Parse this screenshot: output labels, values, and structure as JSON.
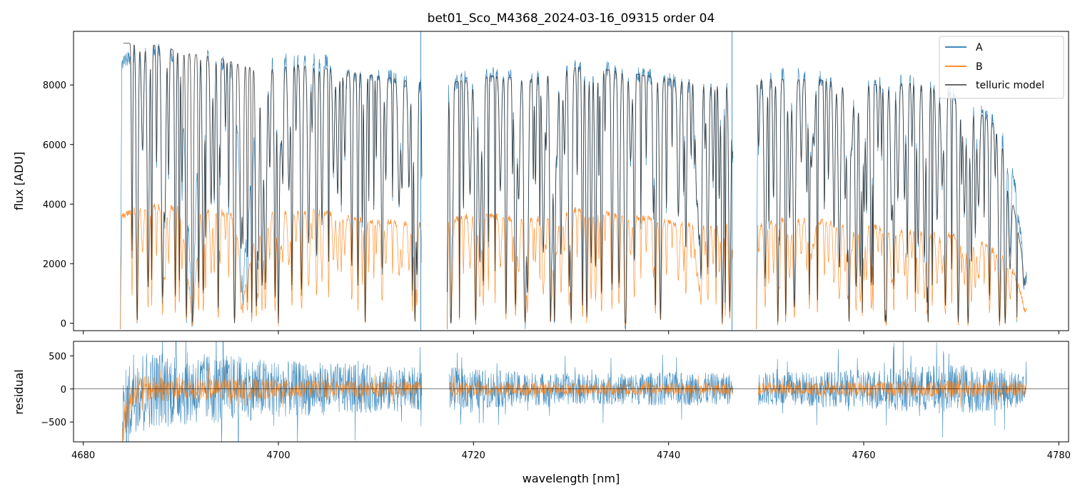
{
  "chart_data": [
    {
      "id": "main-panel",
      "type": "line",
      "title": "bet01_Sco_M4368_2024-03-16_09315  order 04",
      "xlabel": "",
      "ylabel": "flux [ADU]",
      "xlim": [
        4679,
        4781
      ],
      "ylim": [
        -250,
        9800
      ],
      "yticks": [
        0,
        2000,
        4000,
        6000,
        8000
      ],
      "ytick_labels": [
        "0",
        "2000",
        "4000",
        "6000",
        "8000"
      ],
      "xticks": [
        4680,
        4700,
        4720,
        4740,
        4760,
        4780
      ],
      "grid": false,
      "legend_position": "top-right",
      "colors": {
        "A": "#1f77b4",
        "B": "#ff7f0e",
        "telluric": "#333333"
      },
      "segments": [
        [
          4683.8,
          4714.7
        ],
        [
          4717.3,
          4746.6
        ],
        [
          4749.0,
          4776.7
        ]
      ],
      "series": [
        {
          "name": "A",
          "x": [
            4684.0,
            4686.0,
            4688.0,
            4690.0,
            4691.2,
            4692.0,
            4694.0,
            4695.5,
            4696.5,
            4698.0,
            4700.0,
            4702.0,
            4704.0,
            4706.0,
            4708.0,
            4710.0,
            4712.0,
            4714.0,
            4717.5,
            4720.0,
            4724.0,
            4728.0,
            4730.0,
            4732.0,
            4735.0,
            4738.0,
            4742.0,
            4745.5,
            4749.2,
            4752.0,
            4756.0,
            4760.0,
            4764.0,
            4768.0,
            4772.0,
            4775.0,
            4776.6
          ],
          "values": [
            8700,
            9300,
            9200,
            8900,
            200,
            9000,
            8800,
            8400,
            2000,
            8200,
            9000,
            8800,
            9000,
            8500,
            8200,
            8300,
            8300,
            8000,
            8000,
            8400,
            8300,
            8200,
            8700,
            8700,
            8400,
            8300,
            8000,
            8000,
            8000,
            8400,
            8200,
            8000,
            8200,
            7900,
            7300,
            6000,
            1500
          ]
        },
        {
          "name": "B",
          "x": [
            4684.0,
            4686.0,
            4688.0,
            4690.0,
            4691.2,
            4692.0,
            4694.0,
            4695.5,
            4696.5,
            4698.0,
            4700.0,
            4702.0,
            4704.0,
            4706.0,
            4708.0,
            4710.0,
            4712.0,
            4714.0,
            4717.5,
            4720.0,
            4724.0,
            4728.0,
            4730.0,
            4732.0,
            4735.0,
            4738.0,
            4742.0,
            4745.5,
            4749.2,
            4752.0,
            4756.0,
            4760.0,
            4764.0,
            4768.0,
            4772.0,
            4775.0,
            4776.6
          ],
          "values": [
            3600,
            3950,
            3900,
            3850,
            150,
            3800,
            3750,
            3600,
            1000,
            3500,
            3750,
            3700,
            3800,
            3600,
            3500,
            3400,
            3400,
            3300,
            3400,
            3700,
            3500,
            3500,
            3800,
            3800,
            3600,
            3500,
            3300,
            3300,
            3300,
            3500,
            3400,
            3300,
            3100,
            3000,
            2700,
            2100,
            500
          ]
        },
        {
          "name": "telluric model",
          "x": [
            4684.0,
            4686.0,
            4688.0,
            4690.0,
            4692.0,
            4694.0,
            4698.0,
            4702.0,
            4706.0,
            4710.0,
            4714.0,
            4718.0,
            4722.0,
            4726.0,
            4730.0,
            4734.0,
            4738.0,
            4742.0,
            4746.0,
            4750.0,
            4754.0,
            4758.0,
            4762.0,
            4766.0,
            4770.0,
            4774.0,
            4776.6
          ],
          "values": [
            9400,
            9400,
            9300,
            9100,
            9000,
            8900,
            8500,
            8700,
            8500,
            8300,
            8100,
            8100,
            8300,
            8200,
            8600,
            8500,
            8300,
            8100,
            8000,
            8200,
            8200,
            8100,
            8000,
            8100,
            7600,
            6500,
            1600
          ]
        }
      ]
    },
    {
      "id": "residual-panel",
      "type": "line",
      "title": "",
      "xlabel": "wavelength [nm]",
      "ylabel": "residual",
      "xlim": [
        4679,
        4781
      ],
      "ylim": [
        -800,
        720
      ],
      "yticks": [
        -500,
        0,
        500
      ],
      "ytick_labels": [
        "−500",
        "0",
        "500"
      ],
      "xticks": [
        4680,
        4700,
        4720,
        4740,
        4760,
        4780
      ],
      "xtick_labels": [
        "4680",
        "4700",
        "4720",
        "4740",
        "4760",
        "4780"
      ],
      "grid": false,
      "zero_line": true,
      "segments": [
        [
          4684.0,
          4714.7
        ],
        [
          4717.5,
          4746.6
        ],
        [
          4749.2,
          4776.7
        ]
      ],
      "series": [
        {
          "name": "A",
          "amplitude_x": [
            4684.0,
            4686.0,
            4690.0,
            4695.0,
            4700.0,
            4705.0,
            4710.0,
            4714.0,
            4718.0,
            4725.0,
            4732.0,
            4740.0,
            4746.0,
            4750.0,
            4758.0,
            4764.0,
            4770.0,
            4776.0
          ],
          "amplitude": [
            750,
            600,
            560,
            520,
            430,
            400,
            360,
            330,
            330,
            260,
            230,
            260,
            240,
            260,
            280,
            340,
            390,
            280
          ]
        },
        {
          "name": "B",
          "amplitude_x": [
            4684.0,
            4686.0,
            4690.0,
            4695.0,
            4700.0,
            4705.0,
            4710.0,
            4714.0,
            4718.0,
            4725.0,
            4732.0,
            4740.0,
            4746.0,
            4750.0,
            4758.0,
            4764.0,
            4770.0,
            4776.0
          ],
          "amplitude": [
            300,
            200,
            180,
            170,
            150,
            130,
            120,
            110,
            110,
            100,
            90,
            100,
            100,
            100,
            110,
            120,
            130,
            110
          ]
        }
      ]
    }
  ]
}
